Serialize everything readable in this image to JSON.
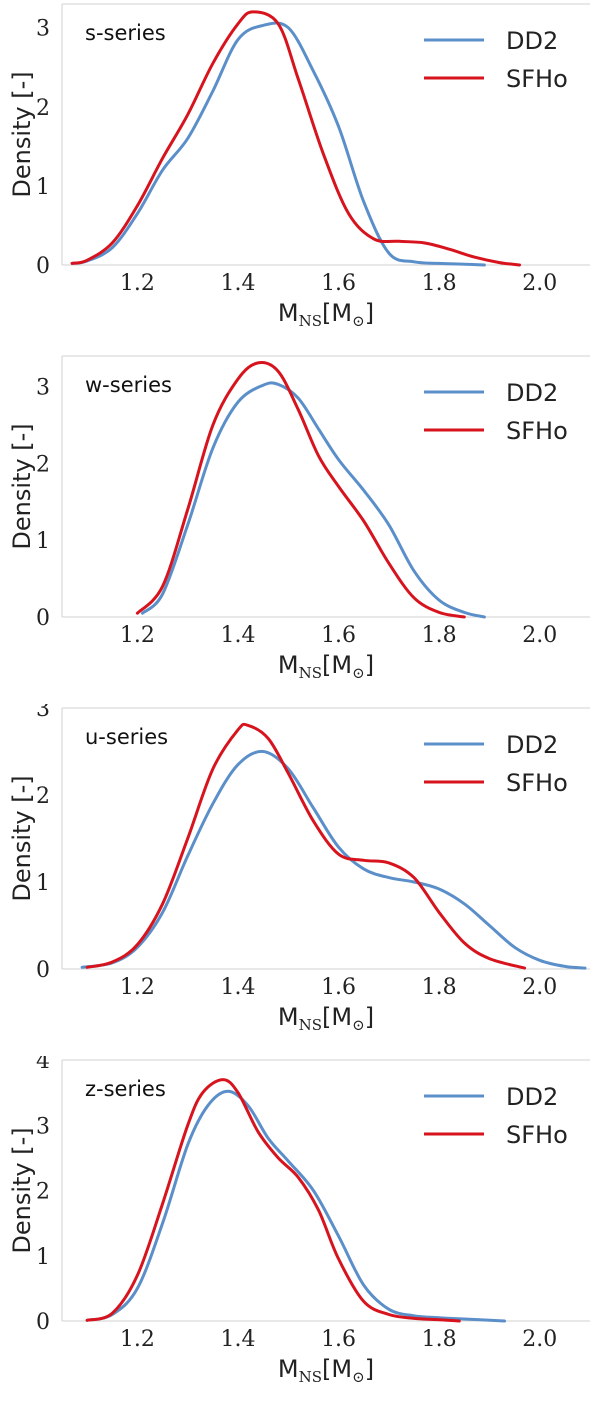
{
  "colors": {
    "DD2": "#5b8fc9",
    "SFHo": "#d7141e"
  },
  "chart_data": [
    {
      "type": "line",
      "title": "s-series",
      "xlabel": "M",
      "xlabel_sub": "NS",
      "xlabel_unit": "[M",
      "xlabel_unit_sub": "⊙",
      "xlabel_close": "]",
      "ylabel": "Density [-]",
      "xlim": [
        1.05,
        2.1
      ],
      "ylim": [
        0,
        3.3
      ],
      "xticks": [
        "1.2",
        "1.4",
        "1.6",
        "1.8",
        "2.0"
      ],
      "yticks": [
        "0",
        "1",
        "2",
        "3"
      ],
      "legend": "top-right",
      "series": [
        {
          "name": "DD2",
          "color": "#5b8fc9",
          "x": [
            1.07,
            1.1,
            1.15,
            1.2,
            1.25,
            1.3,
            1.35,
            1.4,
            1.45,
            1.5,
            1.55,
            1.6,
            1.65,
            1.7,
            1.75,
            1.8,
            1.85,
            1.89
          ],
          "y": [
            0.02,
            0.05,
            0.22,
            0.65,
            1.2,
            1.6,
            2.2,
            2.85,
            3.03,
            3.0,
            2.45,
            1.75,
            0.8,
            0.15,
            0.04,
            0.02,
            0.01,
            0.0
          ]
        },
        {
          "name": "SFHo",
          "color": "#d7141e",
          "x": [
            1.07,
            1.1,
            1.15,
            1.2,
            1.25,
            1.3,
            1.35,
            1.4,
            1.43,
            1.48,
            1.52,
            1.57,
            1.62,
            1.67,
            1.72,
            1.77,
            1.82,
            1.87,
            1.92,
            1.96
          ],
          "y": [
            0.02,
            0.06,
            0.28,
            0.75,
            1.35,
            1.9,
            2.55,
            3.05,
            3.2,
            3.05,
            2.35,
            1.4,
            0.65,
            0.33,
            0.3,
            0.28,
            0.2,
            0.1,
            0.03,
            0.0
          ]
        }
      ]
    },
    {
      "type": "line",
      "title": "w-series",
      "xlabel": "M",
      "xlabel_sub": "NS",
      "xlabel_unit": "[M",
      "xlabel_unit_sub": "⊙",
      "xlabel_close": "]",
      "ylabel": "Density [-]",
      "xlim": [
        1.05,
        2.1
      ],
      "ylim": [
        0,
        3.4
      ],
      "xticks": [
        "1.2",
        "1.4",
        "1.6",
        "1.8",
        "2.0"
      ],
      "yticks": [
        "0",
        "1",
        "2",
        "3"
      ],
      "legend": "top-right",
      "series": [
        {
          "name": "DD2",
          "color": "#5b8fc9",
          "x": [
            1.21,
            1.25,
            1.3,
            1.35,
            1.4,
            1.45,
            1.48,
            1.52,
            1.56,
            1.6,
            1.65,
            1.7,
            1.75,
            1.8,
            1.85,
            1.89
          ],
          "y": [
            0.05,
            0.3,
            1.2,
            2.2,
            2.8,
            3.02,
            3.03,
            2.85,
            2.45,
            2.05,
            1.65,
            1.2,
            0.6,
            0.22,
            0.06,
            0.0
          ]
        },
        {
          "name": "SFHo",
          "color": "#d7141e",
          "x": [
            1.2,
            1.25,
            1.3,
            1.35,
            1.4,
            1.44,
            1.48,
            1.52,
            1.56,
            1.6,
            1.65,
            1.7,
            1.75,
            1.8,
            1.85
          ],
          "y": [
            0.05,
            0.4,
            1.4,
            2.5,
            3.1,
            3.31,
            3.2,
            2.7,
            2.1,
            1.7,
            1.25,
            0.7,
            0.25,
            0.06,
            0.0
          ]
        }
      ]
    },
    {
      "type": "line",
      "title": "u-series",
      "xlabel": "M",
      "xlabel_sub": "NS",
      "xlabel_unit": "[M",
      "xlabel_unit_sub": "⊙",
      "xlabel_close": "]",
      "ylabel": "Density [-]",
      "xlim": [
        1.05,
        2.1
      ],
      "ylim": [
        0,
        3.0
      ],
      "xticks": [
        "1.2",
        "1.4",
        "1.6",
        "1.8",
        "2.0"
      ],
      "yticks": [
        "0",
        "1",
        "2",
        "3"
      ],
      "legend": "top-right",
      "series": [
        {
          "name": "DD2",
          "color": "#5b8fc9",
          "x": [
            1.09,
            1.15,
            1.2,
            1.25,
            1.3,
            1.35,
            1.4,
            1.45,
            1.5,
            1.55,
            1.6,
            1.65,
            1.7,
            1.75,
            1.8,
            1.85,
            1.9,
            1.95,
            2.0,
            2.05,
            2.09
          ],
          "y": [
            0.02,
            0.07,
            0.25,
            0.65,
            1.3,
            1.9,
            2.35,
            2.5,
            2.3,
            1.85,
            1.4,
            1.15,
            1.05,
            1.0,
            0.92,
            0.75,
            0.5,
            0.25,
            0.1,
            0.03,
            0.01
          ]
        },
        {
          "name": "SFHo",
          "color": "#d7141e",
          "x": [
            1.1,
            1.15,
            1.2,
            1.25,
            1.3,
            1.35,
            1.4,
            1.42,
            1.46,
            1.5,
            1.55,
            1.6,
            1.65,
            1.7,
            1.75,
            1.8,
            1.85,
            1.9,
            1.97
          ],
          "y": [
            0.02,
            0.08,
            0.28,
            0.75,
            1.5,
            2.3,
            2.75,
            2.8,
            2.65,
            2.25,
            1.7,
            1.32,
            1.25,
            1.22,
            1.05,
            0.65,
            0.3,
            0.12,
            0.01
          ]
        }
      ]
    },
    {
      "type": "line",
      "title": "z-series",
      "xlabel": "M",
      "xlabel_sub": "NS",
      "xlabel_unit": "[M",
      "xlabel_unit_sub": "⊙",
      "xlabel_close": "]",
      "ylabel": "Density [-]",
      "xlim": [
        1.05,
        2.1
      ],
      "ylim": [
        0,
        4.0
      ],
      "xticks": [
        "1.2",
        "1.4",
        "1.6",
        "1.8",
        "2.0"
      ],
      "yticks": [
        "0",
        "1",
        "2",
        "3",
        "4"
      ],
      "legend": "top-right",
      "series": [
        {
          "name": "DD2",
          "color": "#5b8fc9",
          "x": [
            1.1,
            1.15,
            1.2,
            1.25,
            1.3,
            1.34,
            1.38,
            1.42,
            1.46,
            1.5,
            1.55,
            1.6,
            1.65,
            1.7,
            1.75,
            1.8,
            1.85,
            1.93
          ],
          "y": [
            0.01,
            0.1,
            0.5,
            1.5,
            2.7,
            3.3,
            3.52,
            3.3,
            2.8,
            2.45,
            2.0,
            1.3,
            0.55,
            0.18,
            0.08,
            0.05,
            0.03,
            0.0
          ]
        },
        {
          "name": "SFHo",
          "color": "#d7141e",
          "x": [
            1.1,
            1.15,
            1.2,
            1.25,
            1.3,
            1.33,
            1.37,
            1.4,
            1.44,
            1.48,
            1.52,
            1.56,
            1.6,
            1.65,
            1.7,
            1.75,
            1.8,
            1.84
          ],
          "y": [
            0.01,
            0.12,
            0.7,
            1.8,
            3.0,
            3.5,
            3.7,
            3.5,
            2.9,
            2.5,
            2.2,
            1.7,
            0.95,
            0.3,
            0.1,
            0.04,
            0.02,
            0.0
          ]
        }
      ]
    }
  ]
}
